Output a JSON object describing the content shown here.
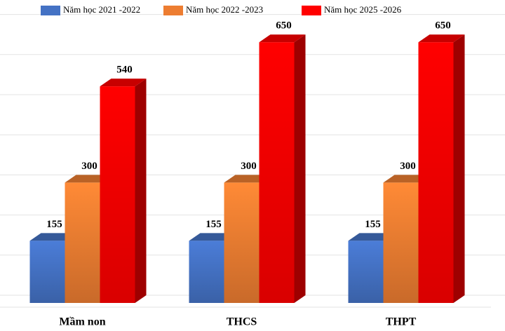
{
  "chart_data": {
    "type": "bar3d",
    "categories": [
      "Mầm non",
      "THCS",
      "THPT"
    ],
    "series": [
      {
        "name": "Năm học 2021 -2022",
        "color": "#4472c4",
        "values": [
          155,
          155,
          155
        ]
      },
      {
        "name": "Năm học 2022 -2023",
        "color": "#ed7d31",
        "values": [
          300,
          300,
          300
        ]
      },
      {
        "name": "Năm học 2025 -2026",
        "color": "#ff0000",
        "values": [
          540,
          650,
          650
        ]
      }
    ],
    "ylim": [
      0,
      750
    ],
    "yticks": [
      0,
      100,
      200,
      300,
      400,
      500,
      600,
      700
    ],
    "grid": true,
    "legend": "top"
  }
}
